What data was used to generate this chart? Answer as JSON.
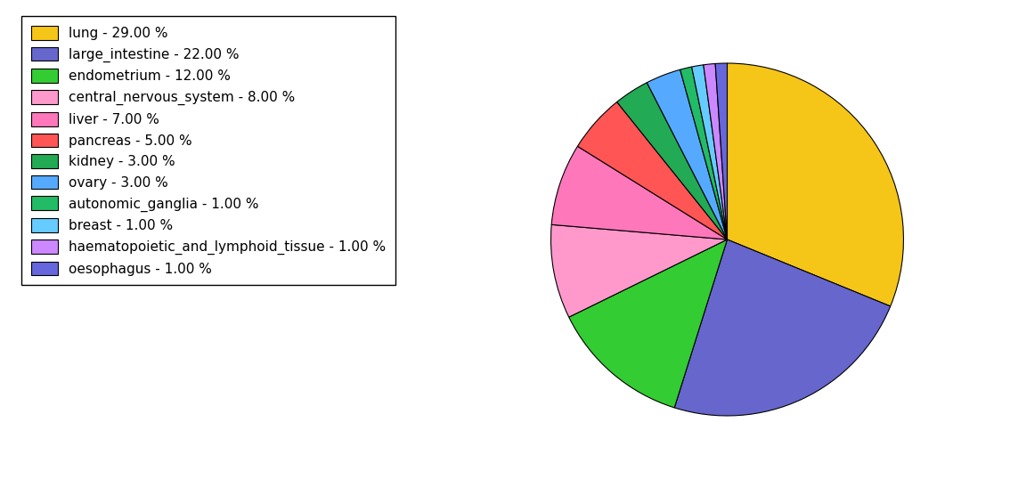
{
  "labels": [
    "lung",
    "large_intestine",
    "endometrium",
    "central_nervous_system",
    "liver",
    "pancreas",
    "kidney",
    "ovary",
    "autonomic_ganglia",
    "breast",
    "haematopoietic_and_lymphoid_tissue",
    "oesophagus"
  ],
  "values": [
    29,
    22,
    12,
    8,
    7,
    5,
    3,
    3,
    1,
    1,
    1,
    1
  ],
  "colors": [
    "#F5C518",
    "#6666CC",
    "#33CC33",
    "#FF99CC",
    "#FF77BB",
    "#FF5555",
    "#22AA55",
    "#55AAFF",
    "#22BB66",
    "#66CCFF",
    "#CC88FF",
    "#6666DD"
  ],
  "legend_labels": [
    "lung - 29.00 %",
    "large_intestine - 22.00 %",
    "endometrium - 12.00 %",
    "central_nervous_system - 8.00 %",
    "liver - 7.00 %",
    "pancreas - 5.00 %",
    "kidney - 3.00 %",
    "ovary - 3.00 %",
    "autonomic_ganglia - 1.00 %",
    "breast - 1.00 %",
    "haematopoietic_and_lymphoid_tissue - 1.00 %",
    "oesophagus - 1.00 %"
  ],
  "startangle": 90,
  "figsize": [
    11.34,
    5.38
  ],
  "dpi": 100
}
